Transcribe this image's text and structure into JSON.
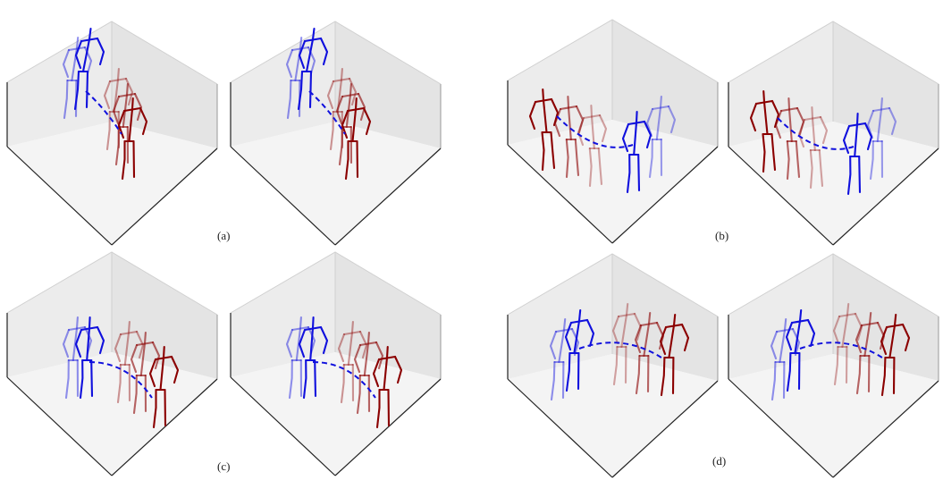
{
  "figure": {
    "panels": [
      {
        "caption": "(a)",
        "plots": 2
      },
      {
        "caption": "(b)",
        "plots": 2
      },
      {
        "caption": "(c)",
        "plots": 2
      },
      {
        "caption": "(d)",
        "plots": 2
      }
    ]
  },
  "colors": {
    "actor_a": "#1010dd",
    "actor_b": "#8b0000",
    "pane_fill": "#ebebeb",
    "axis_edge": "#222222",
    "trajectory_style": "dashed"
  }
}
